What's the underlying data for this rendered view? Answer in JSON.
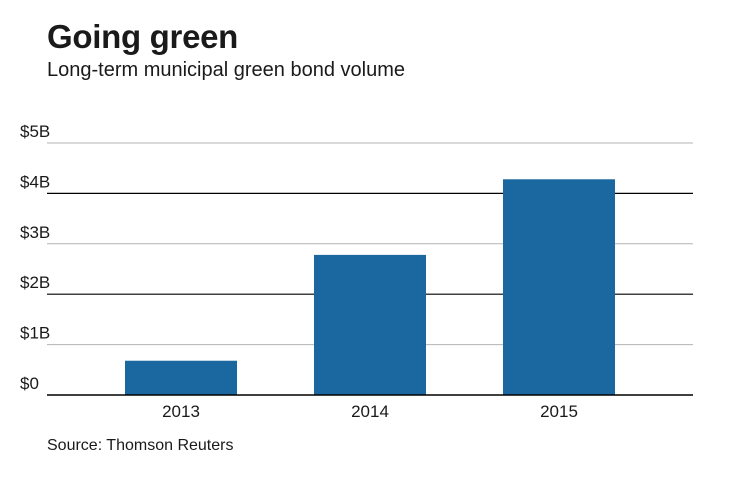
{
  "header": {
    "title": "Going green",
    "subtitle": "Long-term municipal green bond volume"
  },
  "footer": {
    "source": "Source: Thomson Reuters"
  },
  "chart_data": {
    "type": "bar",
    "categories": [
      "2013",
      "2014",
      "2015"
    ],
    "values": [
      0.68,
      2.78,
      4.28
    ],
    "ylim": [
      0,
      5
    ],
    "yticks": [
      0,
      1,
      2,
      3,
      4,
      5
    ],
    "ytick_labels": [
      "$0",
      "$1B",
      "$2B",
      "$3B",
      "$4B",
      "$5B"
    ],
    "xlabel": "",
    "ylabel": "",
    "grid": true,
    "colors": {
      "bar": "#1b679f",
      "grid_light": "#b3b3b3",
      "grid_dark": "#000000"
    }
  }
}
